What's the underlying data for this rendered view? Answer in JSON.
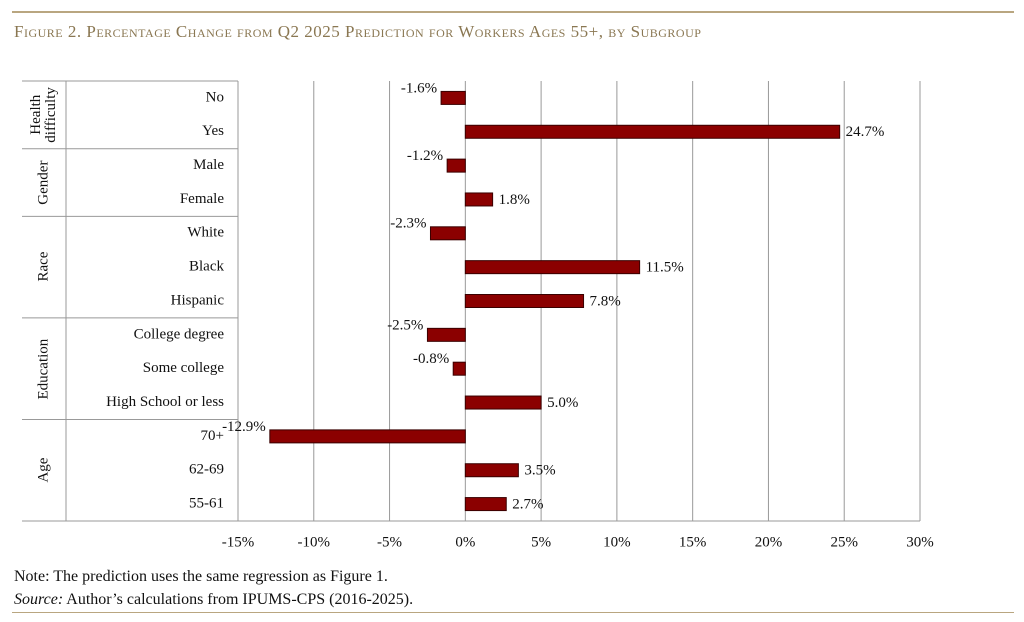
{
  "chart_data": {
    "type": "hbar",
    "title": "Figure 2. Percentage Change from Q2 2025 Prediction for Workers Ages 55+, by Subgroup",
    "color": "#8b0000",
    "groups": [
      {
        "name": "Health difficulty",
        "categories": [
          "No",
          "Yes"
        ],
        "values": [
          -1.6,
          24.7
        ],
        "value_labels": [
          "-1.6%",
          "24.7%"
        ]
      },
      {
        "name": "Gender",
        "categories": [
          "Male",
          "Female"
        ],
        "values": [
          -1.2,
          1.8
        ],
        "value_labels": [
          "-1.2%",
          "1.8%"
        ]
      },
      {
        "name": "Race",
        "categories": [
          "White",
          "Black",
          "Hispanic"
        ],
        "values": [
          -2.3,
          11.5,
          7.8
        ],
        "value_labels": [
          "-2.3%",
          "11.5%",
          "7.8%"
        ]
      },
      {
        "name": "Education",
        "categories": [
          "College degree",
          "Some college",
          "High School or less"
        ],
        "values": [
          -2.5,
          -0.8,
          5.0
        ],
        "value_labels": [
          "-2.5%",
          "-0.8%",
          "5.0%"
        ]
      },
      {
        "name": "Age",
        "categories": [
          "70+",
          "62-69",
          "55-61"
        ],
        "values": [
          -12.9,
          3.5,
          2.7
        ],
        "value_labels": [
          "-12.9%",
          "3.5%",
          "2.7%"
        ]
      }
    ],
    "xlim": [
      -15,
      30
    ],
    "xticks": [
      {
        "value": -15,
        "label": "-15%"
      },
      {
        "value": -10,
        "label": "-10%"
      },
      {
        "value": -5,
        "label": "-5%"
      },
      {
        "value": 0,
        "label": "0%"
      },
      {
        "value": 5,
        "label": "5%"
      },
      {
        "value": 10,
        "label": "10%"
      },
      {
        "value": 15,
        "label": "15%"
      },
      {
        "value": 20,
        "label": "20%"
      },
      {
        "value": 25,
        "label": "25%"
      },
      {
        "value": 30,
        "label": "30%"
      }
    ],
    "grid": true,
    "note": "Note: The prediction uses the same regression as Figure 1.",
    "source_label": "Source:",
    "source": "Author’s calculations from IPUMS-CPS (2016-2025)."
  }
}
